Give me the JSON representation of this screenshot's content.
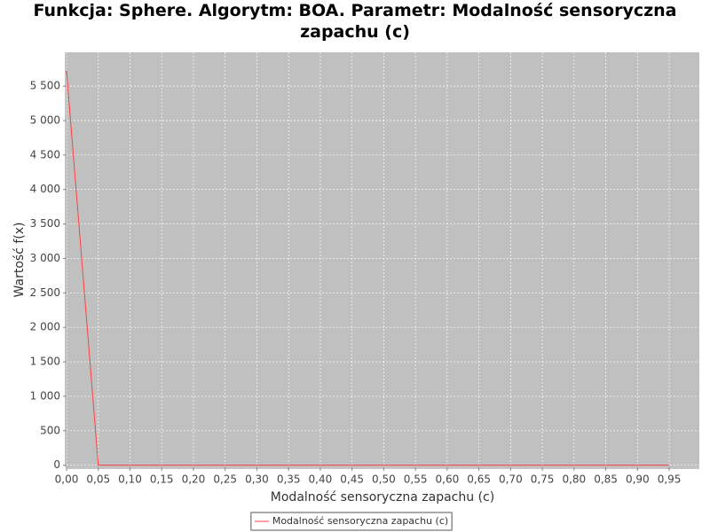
{
  "chart_data": {
    "type": "line",
    "title": "Funkcja: Sphere. Algorytm: BOA. Parametr: Modalność sensoryczna zapachu (c)",
    "x_label": "Modalność sensoryczna zapachu (c)",
    "y_label": "Wartość f(x)",
    "x": [
      0.0,
      0.05,
      0.1,
      0.15,
      0.2,
      0.25,
      0.3,
      0.35,
      0.4,
      0.45,
      0.5,
      0.55,
      0.6,
      0.65,
      0.7,
      0.75,
      0.8,
      0.85,
      0.9,
      0.95
    ],
    "series": [
      {
        "name": "Modalność sensoryczna zapachu (c)",
        "color": "#ff4040",
        "values": [
          5720,
          0,
          0,
          0,
          0,
          0,
          0,
          0,
          0,
          0,
          0,
          0,
          0,
          0,
          0,
          0,
          0,
          0,
          0,
          0
        ]
      }
    ],
    "xlim": [
      0,
      0.9975
    ],
    "ylim": [
      -30,
      5990
    ],
    "xticks": [
      {
        "value": 0.0,
        "label": "0,00"
      },
      {
        "value": 0.05,
        "label": "0,05"
      },
      {
        "value": 0.1,
        "label": "0,10"
      },
      {
        "value": 0.15,
        "label": "0,15"
      },
      {
        "value": 0.2,
        "label": "0,20"
      },
      {
        "value": 0.25,
        "label": "0,25"
      },
      {
        "value": 0.3,
        "label": "0,30"
      },
      {
        "value": 0.35,
        "label": "0,35"
      },
      {
        "value": 0.4,
        "label": "0,40"
      },
      {
        "value": 0.45,
        "label": "0,45"
      },
      {
        "value": 0.5,
        "label": "0,50"
      },
      {
        "value": 0.55,
        "label": "0,55"
      },
      {
        "value": 0.6,
        "label": "0,60"
      },
      {
        "value": 0.65,
        "label": "0,65"
      },
      {
        "value": 0.7,
        "label": "0,70"
      },
      {
        "value": 0.75,
        "label": "0,75"
      },
      {
        "value": 0.8,
        "label": "0,80"
      },
      {
        "value": 0.85,
        "label": "0,85"
      },
      {
        "value": 0.9,
        "label": "0,90"
      },
      {
        "value": 0.95,
        "label": "0,95"
      }
    ],
    "yticks": [
      0,
      500,
      {
        "value": 1000,
        "label": "1 000"
      },
      {
        "value": 1500,
        "label": "1 500"
      },
      {
        "value": 2000,
        "label": "2 000"
      },
      {
        "value": 2500,
        "label": "2 500"
      },
      {
        "value": 3000,
        "label": "3 000"
      },
      {
        "value": 3500,
        "label": "3 500"
      },
      {
        "value": 4000,
        "label": "4 000"
      },
      {
        "value": 4500,
        "label": "4 500"
      },
      {
        "value": 5000,
        "label": "5 000"
      },
      {
        "value": 5500,
        "label": "5 500"
      }
    ],
    "grid": true,
    "legend": "bottom"
  }
}
